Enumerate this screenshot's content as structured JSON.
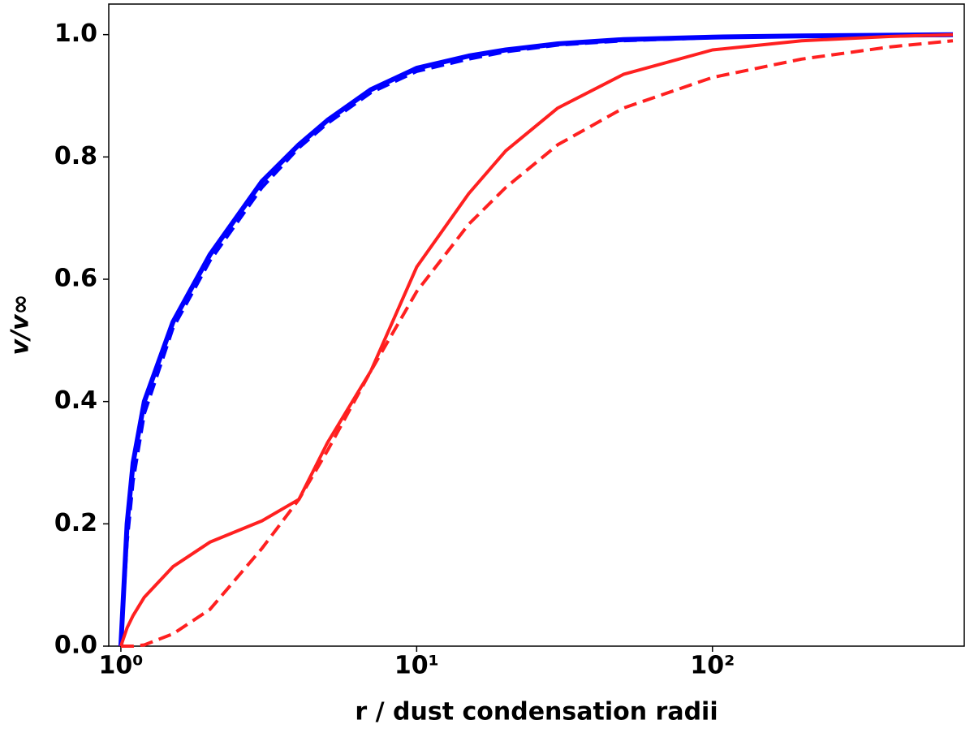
{
  "chart_data": {
    "type": "line",
    "xlabel": "r / dust condensation radii",
    "ylabel": "v/v∞",
    "xscale": "log",
    "x": [
      1,
      1.05,
      1.1,
      1.2,
      1.5,
      2,
      3,
      4,
      5,
      7,
      10,
      15,
      20,
      30,
      50,
      100,
      200,
      400,
      650
    ],
    "series": [
      {
        "color": "#0000ff",
        "dash": false,
        "values": [
          0,
          0.2,
          0.3,
          0.4,
          0.53,
          0.64,
          0.76,
          0.82,
          0.86,
          0.91,
          0.945,
          0.965,
          0.975,
          0.985,
          0.992,
          0.996,
          0.998,
          0.999,
          1.0
        ]
      },
      {
        "color": "#0000ff",
        "dash": true,
        "values": [
          0,
          0.17,
          0.27,
          0.38,
          0.52,
          0.63,
          0.75,
          0.815,
          0.855,
          0.905,
          0.94,
          0.96,
          0.972,
          0.983,
          0.99,
          0.995,
          0.997,
          0.998,
          0.999
        ]
      },
      {
        "color": "#ff2020",
        "dash": false,
        "values": [
          0,
          0.03,
          0.05,
          0.08,
          0.13,
          0.17,
          0.205,
          0.24,
          0.333,
          0.45,
          0.62,
          0.74,
          0.81,
          0.88,
          0.935,
          0.975,
          0.99,
          0.997,
          1.0
        ]
      },
      {
        "color": "#ff2020",
        "dash": true,
        "values": [
          0,
          0,
          0,
          0.002,
          0.02,
          0.06,
          0.16,
          0.24,
          0.32,
          0.45,
          0.58,
          0.69,
          0.75,
          0.82,
          0.88,
          0.93,
          0.96,
          0.98,
          0.99
        ]
      }
    ],
    "xlim": [
      0.91,
      710
    ],
    "ylim": [
      0,
      1.05
    ],
    "xticks": [
      {
        "value": 1,
        "label": "10⁰"
      },
      {
        "value": 10,
        "label": "10¹"
      },
      {
        "value": 100,
        "label": "10²"
      }
    ],
    "yticks": [
      {
        "value": 0,
        "label": "0.0"
      },
      {
        "value": 0.2,
        "label": "0.2"
      },
      {
        "value": 0.4,
        "label": "0.4"
      },
      {
        "value": 0.6,
        "label": "0.6"
      },
      {
        "value": 0.8,
        "label": "0.8"
      },
      {
        "value": 1,
        "label": "1.0"
      }
    ]
  }
}
